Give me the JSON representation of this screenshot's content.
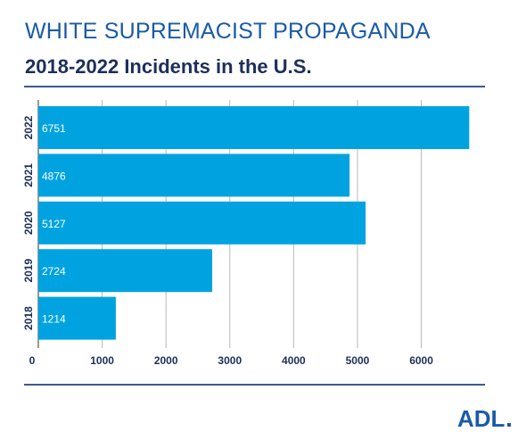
{
  "header": {
    "title": "WHITE SUPREMACIST PROPAGANDA",
    "subtitle": "2018-2022 Incidents in the U.S."
  },
  "chart_data": {
    "type": "bar",
    "orientation": "horizontal",
    "categories": [
      "2022",
      "2021",
      "2020",
      "2019",
      "2018"
    ],
    "values": [
      6751,
      4876,
      5127,
      2724,
      1214
    ],
    "data_labels": [
      "6751",
      "4876",
      "5127",
      "2724",
      "1214"
    ],
    "x_ticks": [
      "0",
      "1000",
      "2000",
      "3000",
      "4000",
      "5000",
      "6000"
    ],
    "x_tick_values": [
      0,
      1000,
      2000,
      3000,
      4000,
      5000,
      6000
    ],
    "xlim": [
      0,
      6900
    ],
    "grid": true,
    "bar_color": "#00a3e0",
    "grid_color": "#b8b8b8"
  },
  "footer": {
    "logo_text": "ADL",
    "logo_color": "#1b5aa6"
  }
}
